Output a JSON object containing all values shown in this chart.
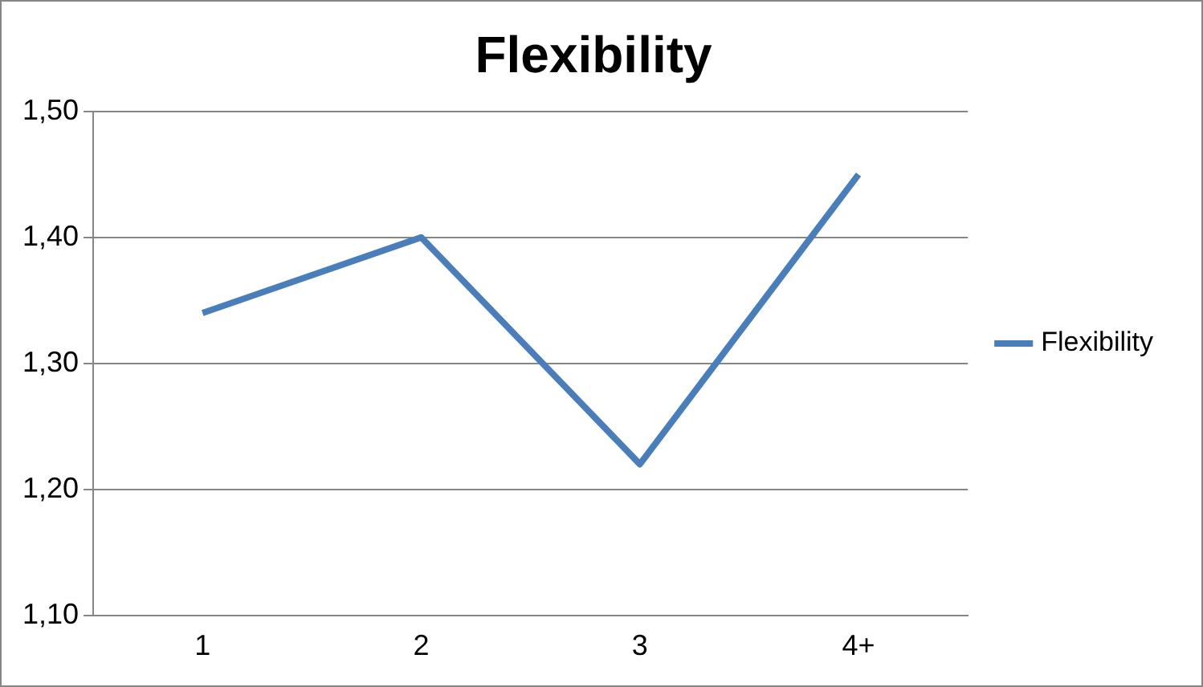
{
  "chart_data": {
    "type": "line",
    "title": "Flexibility",
    "categories": [
      "1",
      "2",
      "3",
      "4+"
    ],
    "series": [
      {
        "name": "Flexibility",
        "color": "#4a7ebb",
        "values": [
          1.34,
          1.4,
          1.22,
          1.45
        ]
      }
    ],
    "ylim": [
      1.1,
      1.5
    ],
    "yticks": [
      {
        "value": 1.1,
        "label": "1,10"
      },
      {
        "value": 1.2,
        "label": "1,20"
      },
      {
        "value": 1.3,
        "label": "1,30"
      },
      {
        "value": 1.4,
        "label": "1,40"
      },
      {
        "value": 1.5,
        "label": "1,50"
      }
    ],
    "grid": "y",
    "legend": "right",
    "marker": "none",
    "line_style": "solid"
  }
}
